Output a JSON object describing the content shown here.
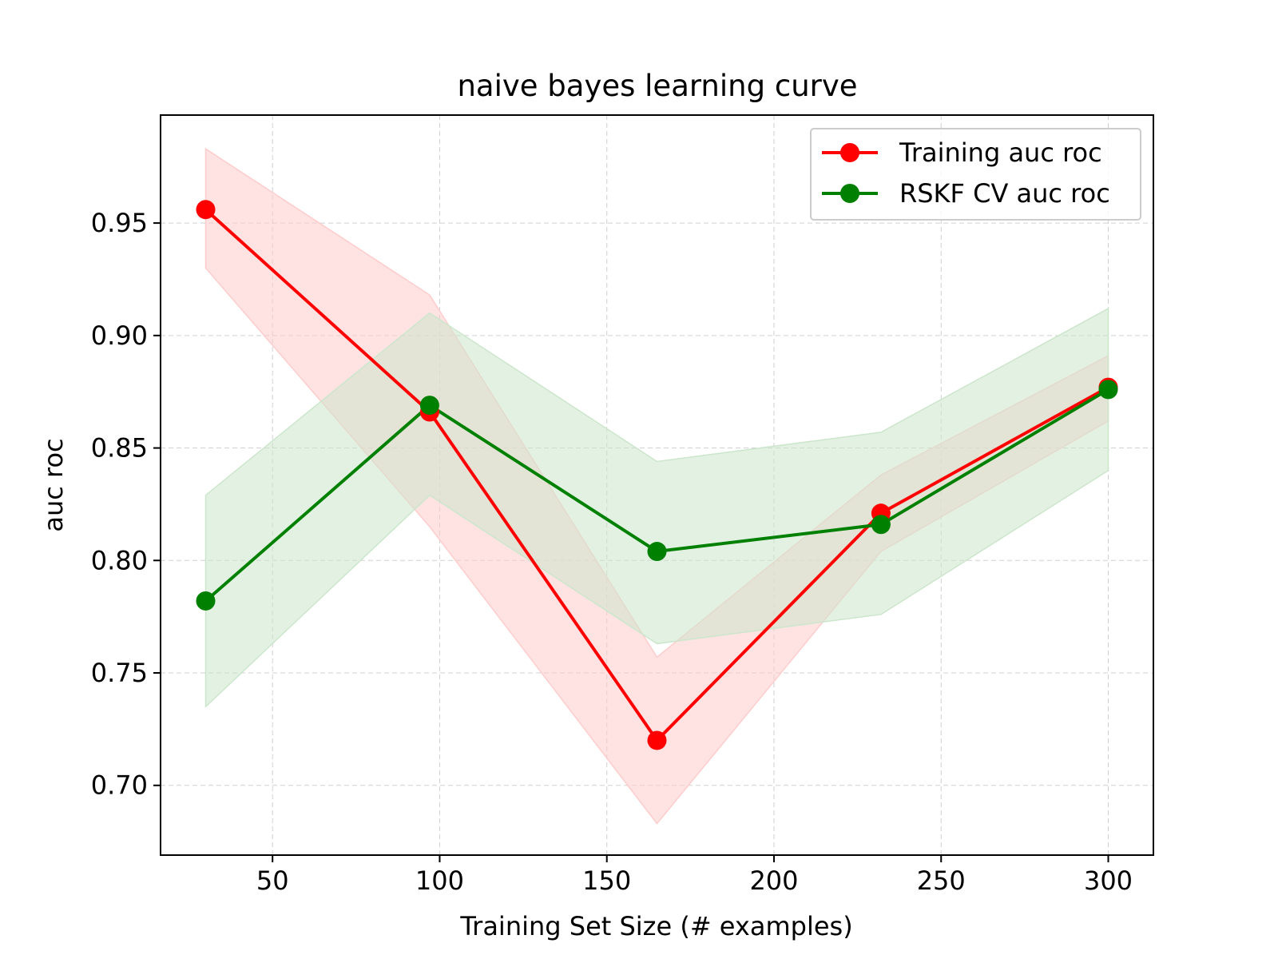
{
  "chart_data": {
    "type": "line",
    "title": "naive bayes learning curve",
    "xlabel": "Training Set Size (# examples)",
    "ylabel": "auc roc",
    "xlim": [
      16.5,
      313.5
    ],
    "ylim": [
      0.669,
      0.998
    ],
    "xticks": [
      50,
      100,
      150,
      200,
      250,
      300
    ],
    "yticks": [
      0.7,
      0.75,
      0.8,
      0.85,
      0.9,
      0.95
    ],
    "xtick_labels": [
      "50",
      "100",
      "150",
      "200",
      "250",
      "300"
    ],
    "ytick_labels": [
      "0.70",
      "0.75",
      "0.80",
      "0.85",
      "0.90",
      "0.95"
    ],
    "grid": true,
    "legend_position": "top-right",
    "x": [
      30,
      97,
      165,
      232,
      300
    ],
    "series": [
      {
        "name": "Training auc roc",
        "color": "#ff0000",
        "values": [
          0.956,
          0.866,
          0.72,
          0.821,
          0.877
        ],
        "band_upper": [
          0.983,
          0.918,
          0.757,
          0.838,
          0.891
        ],
        "band_lower": [
          0.93,
          0.815,
          0.683,
          0.804,
          0.862
        ],
        "band_color": "#ffcccc"
      },
      {
        "name": "RSKF CV auc roc",
        "color": "#008000",
        "values": [
          0.782,
          0.869,
          0.804,
          0.816,
          0.876
        ],
        "band_upper": [
          0.829,
          0.91,
          0.844,
          0.857,
          0.912
        ],
        "band_lower": [
          0.735,
          0.829,
          0.763,
          0.776,
          0.84
        ],
        "band_color": "#cce6cc"
      }
    ]
  }
}
